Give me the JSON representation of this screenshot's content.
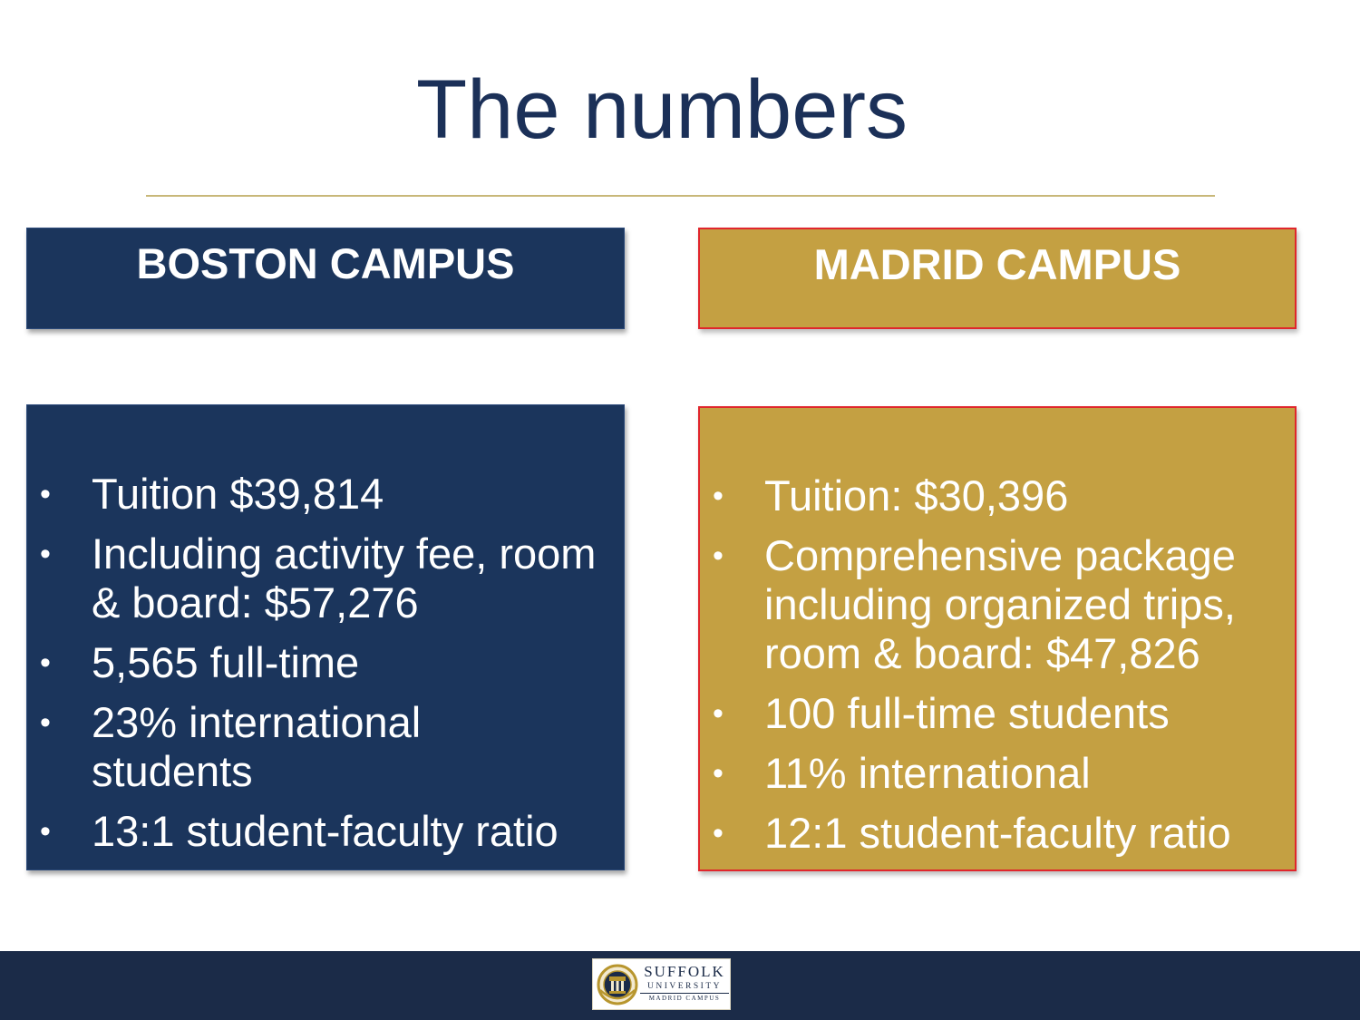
{
  "slide": {
    "title": "The numbers"
  },
  "boston": {
    "header": "BOSTON CAMPUS",
    "bullets": [
      "Tuition $39,814",
      "Including activity fee, room & board: $57,276",
      "5,565 full-time",
      "23% international students",
      "13:1 student-faculty ratio"
    ]
  },
  "madrid": {
    "header": "MADRID CAMPUS",
    "bullets": [
      "Tuition: $30,396",
      "Comprehensive package including organized trips, room & board: $47,826",
      "100 full-time students",
      "11% international",
      "12:1 student-faculty ratio"
    ]
  },
  "footer": {
    "logo": {
      "name": "SUFFOLK",
      "sub": "UNIVERSITY",
      "campus": "MADRID CAMPUS"
    }
  },
  "bullet_glyph": "•",
  "colors": {
    "title": "#1b3058",
    "navy": "#1b355c",
    "gold": "#c4a042",
    "gold_border": "#e0262c",
    "footer": "#1b2b48",
    "rule": "#c8b879"
  }
}
